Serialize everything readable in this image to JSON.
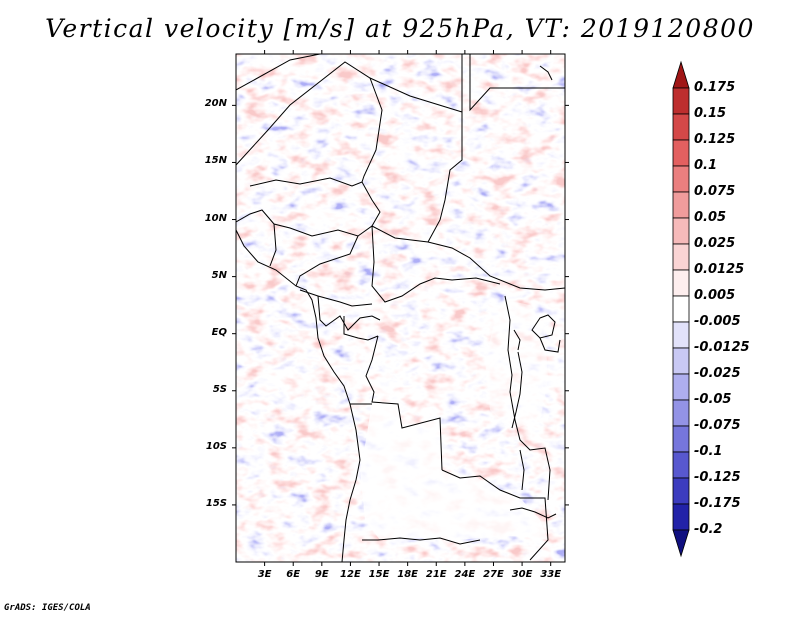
{
  "title": "Vertical velocity [m/s] at 925hPa, VT: 2019120800",
  "credit": "GrADS: IGES/COLA",
  "map": {
    "lat_labels": [
      "20N",
      "15N",
      "10N",
      "5N",
      "EQ",
      "5S",
      "10S",
      "15S"
    ],
    "lat_values": [
      20,
      15,
      10,
      5,
      0,
      -5,
      -10,
      -15
    ],
    "lon_labels": [
      "3E",
      "6E",
      "9E",
      "12E",
      "15E",
      "18E",
      "21E",
      "24E",
      "27E",
      "30E",
      "33E"
    ],
    "lon_values": [
      3,
      6,
      9,
      12,
      15,
      18,
      21,
      24,
      27,
      30,
      33
    ],
    "lat_range": [
      -20,
      24.5
    ],
    "lon_range": [
      0,
      34.5
    ]
  },
  "colorbar": {
    "labels": [
      "0.175",
      "0.15",
      "0.125",
      "0.1",
      "0.075",
      "0.05",
      "0.025",
      "0.0125",
      "0.005",
      "-0.005",
      "-0.0125",
      "-0.025",
      "-0.05",
      "-0.075",
      "-0.1",
      "-0.125",
      "-0.175",
      "-0.2"
    ],
    "colors": [
      "#a01616",
      "#bd2e2e",
      "#d44848",
      "#e36060",
      "#ea7f7f",
      "#f09c9c",
      "#f6baba",
      "#fad4d4",
      "#fdeeee",
      "#ffffff",
      "#e2e2fa",
      "#c9c9f4",
      "#aeaeee",
      "#9393e6",
      "#7676dc",
      "#5858cf",
      "#3c3cbf",
      "#2222a8",
      "#101080"
    ]
  }
}
